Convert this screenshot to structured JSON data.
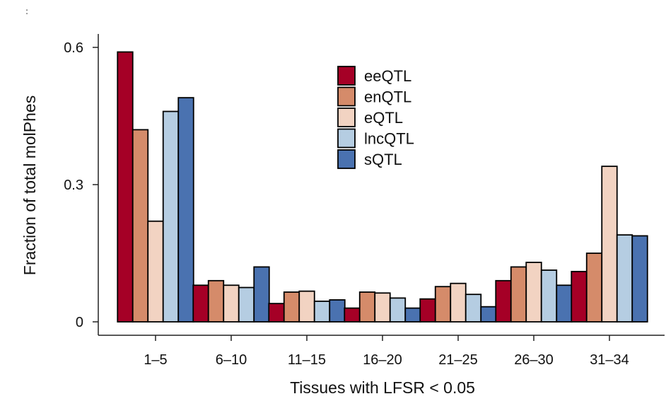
{
  "corner_mark": ":",
  "chart_data": {
    "type": "bar",
    "title": "",
    "xlabel": "Tissues with LFSR < 0.05",
    "ylabel": "Fraction of total molPhes",
    "ylim": [
      0,
      0.6
    ],
    "yticks": [
      0,
      0.3,
      0.6
    ],
    "ytick_labels": [
      "0",
      "0.3",
      "0.6"
    ],
    "categories": [
      "1–5",
      "6–10",
      "11–15",
      "16–20",
      "21–25",
      "26–30",
      "31–34"
    ],
    "legend_position": "top-center",
    "series": [
      {
        "name": "eeQTL",
        "color": "#a50026",
        "values": [
          0.59,
          0.08,
          0.04,
          0.03,
          0.05,
          0.09,
          0.11
        ]
      },
      {
        "name": "enQTL",
        "color": "#d58b6a",
        "values": [
          0.42,
          0.09,
          0.065,
          0.065,
          0.077,
          0.12,
          0.15
        ]
      },
      {
        "name": "eQTL",
        "color": "#f2d3c2",
        "values": [
          0.22,
          0.08,
          0.067,
          0.063,
          0.084,
          0.13,
          0.34
        ]
      },
      {
        "name": "lncQTL",
        "color": "#b5cde2",
        "values": [
          0.46,
          0.075,
          0.045,
          0.052,
          0.06,
          0.113,
          0.19
        ]
      },
      {
        "name": "sQTL",
        "color": "#4a72b0",
        "values": [
          0.49,
          0.12,
          0.048,
          0.03,
          0.033,
          0.08,
          0.188
        ]
      }
    ]
  }
}
